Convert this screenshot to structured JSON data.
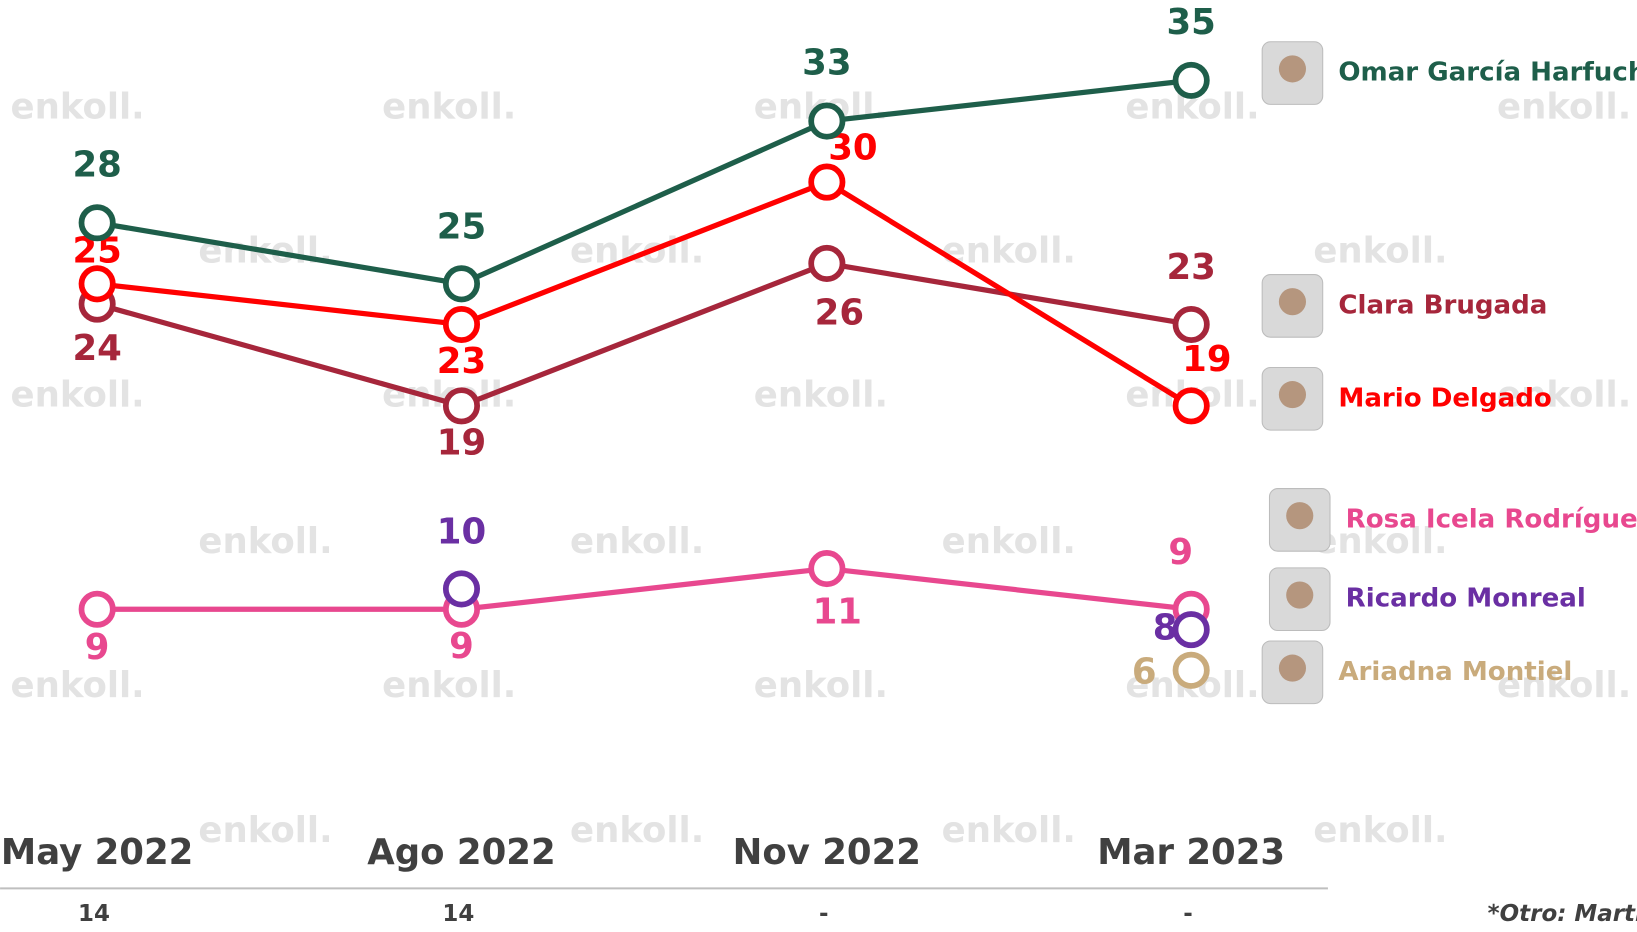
{
  "chart_data": {
    "type": "line",
    "categories": [
      "May 2022",
      "Ago 2022",
      "Nov 2022",
      "Mar 2023"
    ],
    "series": [
      {
        "name": "Rosa Icela Rodríguez",
        "color": "#e8488f",
        "values": [
          9,
          9,
          11,
          9
        ]
      },
      {
        "name": "Ricardo Monreal",
        "color": "#6a2fa3",
        "values": [
          null,
          10,
          null,
          8
        ]
      },
      {
        "name": "Ariadna Montiel",
        "color": "#c9ab7c",
        "values": [
          null,
          null,
          null,
          6
        ]
      },
      {
        "name": "Clara Brugada",
        "color": "#a6263b",
        "values": [
          24,
          19,
          26,
          23
        ]
      },
      {
        "name": "Mario Delgado",
        "color": "#ff0000",
        "values": [
          25,
          23,
          30,
          19
        ]
      },
      {
        "name": "Omar García Harfuch",
        "color": "#1e5e4a",
        "values": [
          28,
          25,
          33,
          35
        ]
      }
    ],
    "ylim": [
      0,
      35
    ],
    "footer_values": [
      14,
      14,
      "-",
      "-"
    ],
    "footnote": "*Otro: Martí",
    "watermark": "enkoll."
  }
}
